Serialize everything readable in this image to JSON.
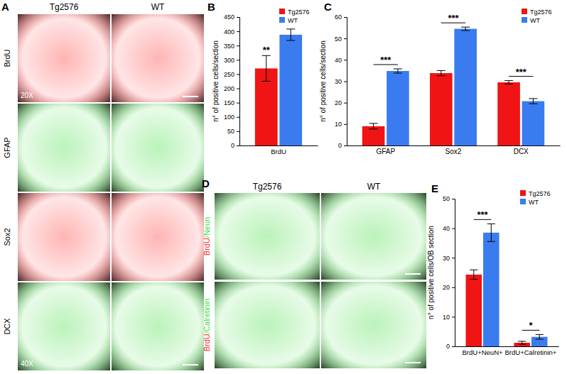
{
  "chart_data": [
    {
      "type": "bar",
      "panel": "B",
      "y_label": "n° of positive cells/section",
      "categories": [
        "BrdU"
      ],
      "series": [
        {
          "name": "Tg2576",
          "color": "#f01414",
          "values": [
            270
          ],
          "errors": [
            45
          ]
        },
        {
          "name": "WT",
          "color": "#3a7cf0",
          "values": [
            388
          ],
          "errors": [
            20
          ]
        }
      ],
      "ylim": [
        0,
        450
      ],
      "yticks": [
        0,
        50,
        100,
        150,
        200,
        250,
        300,
        350,
        400,
        450
      ],
      "legend": "upper right",
      "annotations": [
        {
          "category": "BrdU",
          "series": "Tg2576",
          "text": "**"
        }
      ]
    },
    {
      "type": "bar",
      "panel": "C",
      "y_label": "n° of positive cells/section",
      "categories": [
        "GFAP",
        "Sox2",
        "DCX"
      ],
      "series": [
        {
          "name": "Tg2576",
          "color": "#f01414",
          "values": [
            9,
            33.8,
            29.5
          ],
          "errors": [
            1.3,
            1.2,
            0.8
          ]
        },
        {
          "name": "WT",
          "color": "#3a7cf0",
          "values": [
            34.8,
            54.5,
            20.7
          ],
          "errors": [
            1,
            0.8,
            1.2
          ]
        }
      ],
      "ylim": [
        0,
        60
      ],
      "yticks": [
        0,
        10,
        20,
        30,
        40,
        50,
        60
      ],
      "legend": "upper right",
      "annotations": [
        {
          "category": "GFAP",
          "text": "***"
        },
        {
          "category": "Sox2",
          "text": "***"
        },
        {
          "category": "DCX",
          "text": "***"
        }
      ]
    },
    {
      "type": "bar",
      "panel": "E",
      "y_label": "n° of positive cells/OB section",
      "categories": [
        "BrdU+NeuN+",
        "BrdU+Calretinin+"
      ],
      "series": [
        {
          "name": "Tg2576",
          "color": "#f01414",
          "values": [
            24.3,
            1.2
          ],
          "errors": [
            1.6,
            0.5
          ]
        },
        {
          "name": "WT",
          "color": "#3a7cf0",
          "values": [
            38.5,
            3.2
          ],
          "errors": [
            3,
            0.8
          ]
        }
      ],
      "ylim": [
        0,
        50
      ],
      "yticks": [
        0,
        10,
        20,
        30,
        40,
        50
      ],
      "legend": "upper right",
      "annotations": [
        {
          "category": "BrdU+NeuN+",
          "text": "***"
        },
        {
          "category": "BrdU+Calretinin+",
          "text": "*"
        }
      ]
    }
  ],
  "image_panels": [
    {
      "panel": "A",
      "columns": [
        "Tg2576",
        "WT"
      ],
      "rows": [
        {
          "label": "BrdU",
          "color": "#ff2a2a"
        },
        {
          "label": "GFAP",
          "color": "#3cdc3c"
        },
        {
          "label": "Sox2",
          "color": "#ff2a2a"
        },
        {
          "label": "DCX",
          "color": "#3cdc3c"
        }
      ],
      "magnifications": [
        {
          "row": "BrdU",
          "text": "20X"
        },
        {
          "row": "DCX",
          "text": "40X"
        }
      ]
    },
    {
      "panel": "D",
      "columns": [
        "Tg2576",
        "WT"
      ],
      "rows": [
        {
          "label_parts": [
            {
              "text": "BrdU",
              "color": "#ff2a2a"
            },
            {
              "text": "/Neun",
              "color": "#3cdc3c"
            }
          ]
        },
        {
          "label_parts": [
            {
              "text": "BrdU",
              "color": "#ff2a2a"
            },
            {
              "text": "/Calretinin",
              "color": "#3cdc3c"
            }
          ]
        }
      ]
    }
  ]
}
